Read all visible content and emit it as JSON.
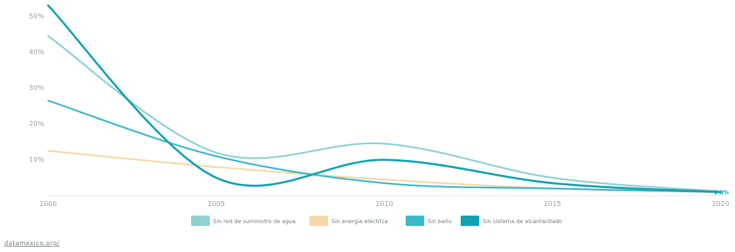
{
  "chart_data": {
    "type": "line",
    "title": "",
    "xlabel": "",
    "ylabel": "",
    "x": [
      2000,
      2005,
      2010,
      2015,
      2020
    ],
    "xlim": [
      2000,
      2020
    ],
    "ylim": [
      0,
      53
    ],
    "y_ticks": [
      "10%",
      "20%",
      "30%",
      "40%",
      "50%"
    ],
    "x_ticks": [
      "2000",
      "2005",
      "2010",
      "2015",
      "2020"
    ],
    "grid": false,
    "legend_position": "bottom",
    "series": [
      {
        "name": "Sin red de suministro de agua",
        "values": [
          44.5,
          12.0,
          14.5,
          5.0,
          1.2
        ],
        "color": "#8fd0d3"
      },
      {
        "name": "Sin energía eléctrica",
        "values": [
          12.5,
          8.0,
          4.5,
          2.0,
          1.0
        ],
        "color": "#f6d9a8"
      },
      {
        "name": "Sin baño",
        "values": [
          26.5,
          11.0,
          3.5,
          2.0,
          1.0
        ],
        "color": "#3fb8c8"
      },
      {
        "name": "Sin sistema de alcantarillado",
        "values": [
          53.0,
          5.0,
          10.0,
          3.5,
          1.0
        ],
        "color": "#12a2b0"
      }
    ],
    "end_label": "1.0%"
  },
  "source": {
    "text": "datamexico.org/"
  }
}
